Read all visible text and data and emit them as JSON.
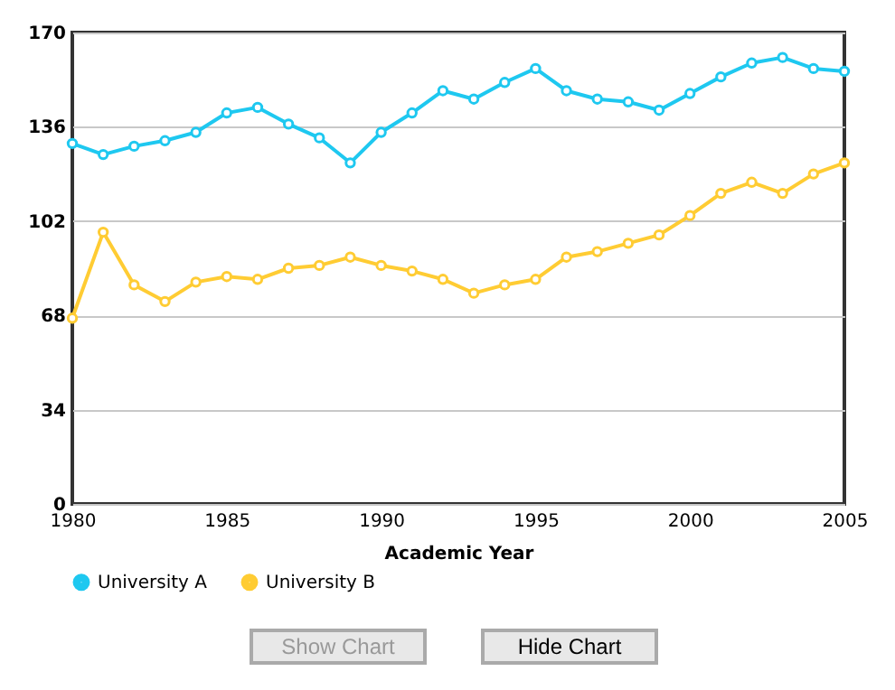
{
  "chart_data": {
    "type": "line",
    "xlabel": "Academic Year",
    "x": [
      1980,
      1981,
      1982,
      1983,
      1984,
      1985,
      1986,
      1987,
      1988,
      1989,
      1990,
      1991,
      1992,
      1993,
      1994,
      1995,
      1996,
      1997,
      1998,
      1999,
      2000,
      2001,
      2002,
      2003,
      2004,
      2005
    ],
    "series": [
      {
        "name": "University A",
        "color": "#1ec8f0",
        "values": [
          130,
          126,
          129,
          131,
          134,
          141,
          143,
          137,
          132,
          123,
          134,
          141,
          149,
          146,
          152,
          157,
          149,
          146,
          145,
          142,
          148,
          154,
          159,
          161,
          157,
          156
        ]
      },
      {
        "name": "University B",
        "color": "#ffcc33",
        "values": [
          67,
          98,
          79,
          73,
          80,
          82,
          81,
          85,
          86,
          89,
          86,
          84,
          81,
          76,
          79,
          81,
          89,
          91,
          94,
          97,
          104,
          112,
          116,
          112,
          119,
          123
        ]
      }
    ],
    "xlim": [
      1980,
      2005
    ],
    "xticks": [
      1980,
      1985,
      1990,
      1995,
      2000,
      2005
    ],
    "ylim": [
      0,
      170
    ],
    "yticks": [
      0,
      34,
      68,
      102,
      136,
      170
    ],
    "grid": "y",
    "legend": "bottom",
    "marker": "circle",
    "line_style": "solid",
    "annotations": [
      "Show Chart",
      "Hide Chart"
    ]
  }
}
